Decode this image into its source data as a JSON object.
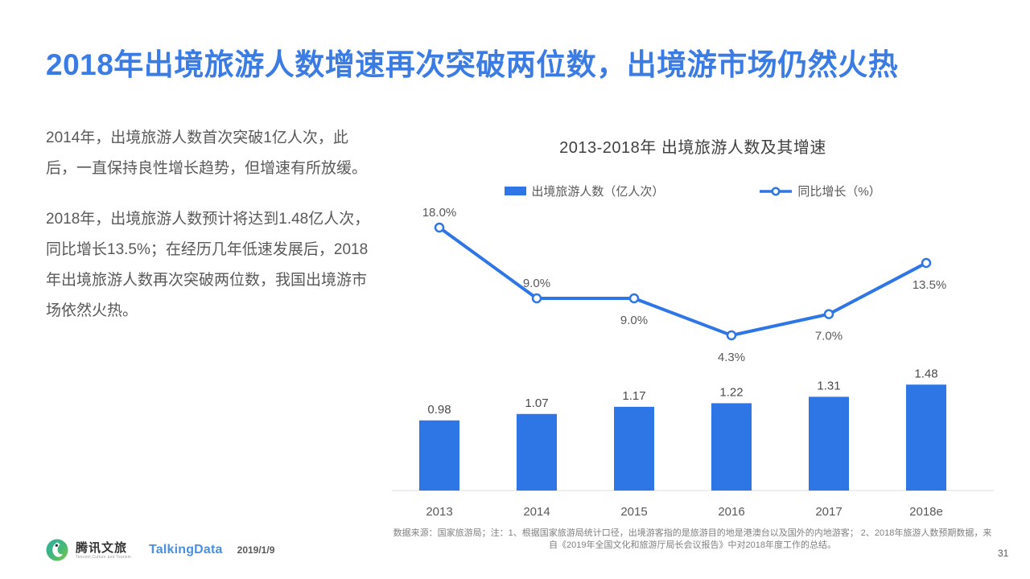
{
  "slide": {
    "title": "2018年出境旅游人数增速再次突破两位数，出境游市场仍然火热",
    "page_number": "31",
    "date": "2019/1/9"
  },
  "body_text": {
    "paragraph1": "2014年，出境旅游人数首次突破1亿人次，此后，一直保持良性增长趋势，但增速有所放缓。",
    "paragraph2": "2018年，出境旅游人数预计将达到1.48亿人次，同比增长13.5%；在经历几年低速发展后，2018年出境旅游人数再次突破两位数，我国出境游市场依然火热。"
  },
  "footer": {
    "brand1_name": "腾讯文旅",
    "brand1_subtitle": "Tencent Culture and Tourism",
    "brand2_name": "TalkingData",
    "source_note": "数据来源：国家旅游局；注：1、根据国家旅游局统计口径，出境游客指的是旅游目的地是港澳台以及国外的内地游客；  2、2018年旅游人数预期数据，来自《2019年全国文化和旅游厅局长会议报告》中对2018年度工作的总结。"
  },
  "chart_data": {
    "type": "combo",
    "title": "2013-2018年 出境旅游人数及其增速",
    "categories": [
      "2013",
      "2014",
      "2015",
      "2016",
      "2017",
      "2018e"
    ],
    "series": [
      {
        "name": "出境旅游人数（亿人次）",
        "type": "bar",
        "values": [
          0.98,
          1.07,
          1.17,
          1.22,
          1.31,
          1.48
        ],
        "labels": [
          "0.98",
          "1.07",
          "1.17",
          "1.22",
          "1.31",
          "1.48"
        ]
      },
      {
        "name": "同比增长（%）",
        "type": "line",
        "values": [
          18.0,
          9.0,
          9.0,
          4.3,
          7.0,
          13.5
        ],
        "labels": [
          "18.0%",
          "9.0%",
          "9.0%",
          "4.3%",
          "7.0%",
          "13.5%"
        ],
        "label_position": [
          "above",
          "above",
          "below",
          "below",
          "below",
          "below"
        ]
      }
    ],
    "colors": {
      "bar": "#2E75E5",
      "line": "#2E75E5",
      "label": "#595959",
      "value_label": "#4A4A4A",
      "axis": "#DCDCDC"
    },
    "legend_position": "top",
    "grid": false,
    "y_axis_visible": false,
    "x_axis_visible": true
  }
}
